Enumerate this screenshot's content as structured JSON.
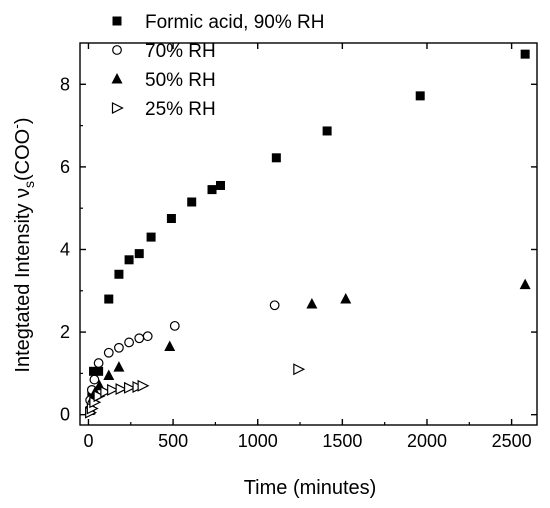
{
  "chart_data": {
    "type": "scatter",
    "title": "",
    "xlabel": "Time (minutes)",
    "ylabel": {
      "main": "Integtated Intensity ν",
      "sub": "s",
      "tail": "(COO",
      "sup": "-",
      "close": ")"
    },
    "xlim": [
      -50,
      2650
    ],
    "ylim": [
      -0.25,
      9.0
    ],
    "xticks": [
      0,
      500,
      1000,
      1500,
      2000,
      2500
    ],
    "yticks": [
      0,
      2,
      4,
      6,
      8
    ],
    "grid": false,
    "legend_position": "top-left",
    "series": [
      {
        "name": "Formic acid, 90% RH",
        "marker": "filled-square",
        "points": [
          [
            10,
            0.1
          ],
          [
            20,
            0.55
          ],
          [
            30,
            1.05
          ],
          [
            60,
            1.05
          ],
          [
            120,
            2.8
          ],
          [
            180,
            3.4
          ],
          [
            240,
            3.75
          ],
          [
            300,
            3.9
          ],
          [
            370,
            4.3
          ],
          [
            490,
            4.75
          ],
          [
            610,
            5.15
          ],
          [
            730,
            5.45
          ],
          [
            780,
            5.55
          ],
          [
            1110,
            6.22
          ],
          [
            1410,
            6.87
          ],
          [
            1960,
            7.72
          ],
          [
            2580,
            8.73
          ]
        ]
      },
      {
        "name": "70% RH",
        "marker": "open-circle",
        "points": [
          [
            10,
            0.35
          ],
          [
            20,
            0.6
          ],
          [
            35,
            0.85
          ],
          [
            60,
            1.25
          ],
          [
            120,
            1.5
          ],
          [
            180,
            1.62
          ],
          [
            240,
            1.75
          ],
          [
            300,
            1.85
          ],
          [
            350,
            1.9
          ],
          [
            510,
            2.15
          ],
          [
            1100,
            2.65
          ]
        ]
      },
      {
        "name": "50% RH",
        "marker": "filled-triangle",
        "points": [
          [
            10,
            0.12
          ],
          [
            25,
            0.4
          ],
          [
            40,
            0.55
          ],
          [
            65,
            0.7
          ],
          [
            120,
            0.95
          ],
          [
            180,
            1.15
          ],
          [
            480,
            1.65
          ],
          [
            1320,
            2.68
          ],
          [
            1520,
            2.8
          ],
          [
            2580,
            3.15
          ]
        ]
      },
      {
        "name": "25% RH",
        "marker": "open-right-triangle",
        "points": [
          [
            10,
            0.05
          ],
          [
            20,
            0.15
          ],
          [
            35,
            0.3
          ],
          [
            60,
            0.45
          ],
          [
            100,
            0.55
          ],
          [
            140,
            0.6
          ],
          [
            190,
            0.62
          ],
          [
            240,
            0.65
          ],
          [
            290,
            0.67
          ],
          [
            320,
            0.7
          ],
          [
            1240,
            1.1
          ]
        ]
      }
    ]
  }
}
